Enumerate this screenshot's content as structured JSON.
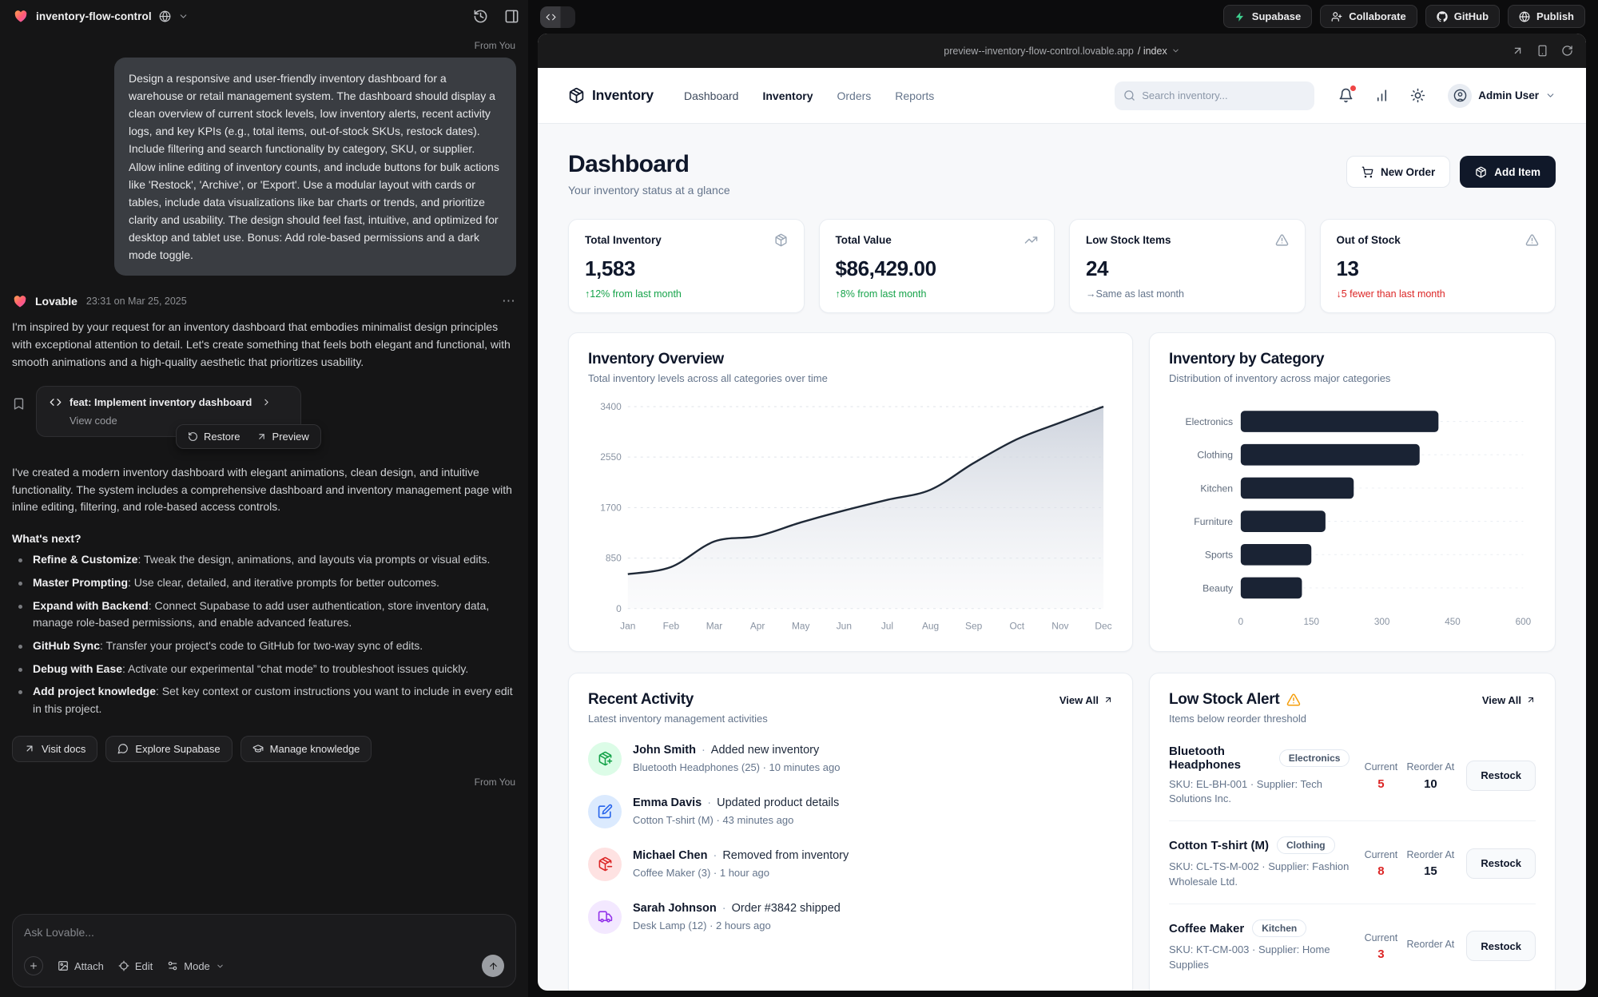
{
  "chrome": {
    "project_name": "inventory-flow-control",
    "url": "preview--inventory-flow-control.lovable.app",
    "url_path": "/ index",
    "topbar_buttons": [
      {
        "label": "Supabase",
        "icon": "supabase"
      },
      {
        "label": "Collaborate",
        "icon": "user-plus"
      },
      {
        "label": "GitHub",
        "icon": "github"
      },
      {
        "label": "Publish",
        "icon": "globe"
      }
    ]
  },
  "chat": {
    "from_you": "From You",
    "user_message": "Design a responsive and user-friendly inventory dashboard for a warehouse or retail management system. The dashboard should display a clean overview of current stock levels, low inventory alerts, recent activity logs, and key KPIs (e.g., total items, out-of-stock SKUs, restock dates). Include filtering and search functionality by category, SKU, or supplier. Allow inline editing of inventory counts, and include buttons for bulk actions like 'Restock', 'Archive', or 'Export'. Use a modular layout with cards or tables, include data visualizations like bar charts or trends, and prioritize clarity and usability. The design should feel fast, intuitive, and optimized for desktop and tablet use. Bonus: Add role-based permissions and a dark mode toggle.",
    "assistant_name": "Lovable",
    "assistant_time": "23:31 on Mar 25, 2025",
    "assistant_intro": "I'm inspired by your request for an inventory dashboard that embodies minimalist design principles with exceptional attention to detail. Let's create something that feels both elegant and functional, with smooth animations and a high-quality aesthetic that prioritizes usability.",
    "commit_title": "feat: Implement inventory dashboard",
    "view_code": "View code",
    "restore": "Restore",
    "preview": "Preview",
    "assistant_summary": "I've created a modern inventory dashboard with elegant animations, clean design, and intuitive functionality. The system includes a comprehensive dashboard and inventory management page with inline editing, filtering, and role-based access controls.",
    "whats_next": "What's next?",
    "bullets": [
      {
        "lead": "Refine & Customize",
        "text": ": Tweak the design, animations, and layouts via prompts or visual edits."
      },
      {
        "lead": "Master Prompting",
        "text": ": Use clear, detailed, and iterative prompts for better outcomes."
      },
      {
        "lead": "Expand with Backend",
        "text": ": Connect Supabase to add user authentication, store inventory data, manage role-based permissions, and enable advanced features."
      },
      {
        "lead": "GitHub Sync",
        "text": ": Transfer your project's code to GitHub for two-way sync of edits."
      },
      {
        "lead": "Debug with Ease",
        "text": ": Activate our experimental “chat mode” to troubleshoot issues quickly."
      },
      {
        "lead": "Add project knowledge",
        "text": ": Set key context or custom instructions you want to include in every edit in this project."
      }
    ],
    "footer_buttons": [
      {
        "label": "Visit docs",
        "icon": "arrow-up-right"
      },
      {
        "label": "Explore Supabase",
        "icon": "message-circle"
      },
      {
        "label": "Manage knowledge",
        "icon": "graduation-cap"
      }
    ],
    "composer": {
      "placeholder": "Ask Lovable...",
      "attach": "Attach",
      "edit": "Edit",
      "mode": "Mode"
    }
  },
  "app": {
    "brand": "Inventory",
    "nav": [
      {
        "label": "Dashboard",
        "active": false,
        "shade": true
      },
      {
        "label": "Inventory",
        "active": true,
        "shade": false
      },
      {
        "label": "Orders",
        "active": false,
        "shade": false
      },
      {
        "label": "Reports",
        "active": false,
        "shade": false
      }
    ],
    "search_placeholder": "Search inventory...",
    "user_name": "Admin User",
    "page_title": "Dashboard",
    "page_subtitle": "Your inventory status at a glance",
    "new_order": "New Order",
    "add_item": "Add Item",
    "kpis": [
      {
        "label": "Total Inventory",
        "icon": "package",
        "value": "1,583",
        "delta": "↑12% from last month",
        "tone": "green"
      },
      {
        "label": "Total Value",
        "icon": "trending-up",
        "value": "$86,429.00",
        "delta": "↑8% from last month",
        "tone": "green"
      },
      {
        "label": "Low Stock Items",
        "icon": "alert-triangle",
        "value": "24",
        "delta": "→Same as last month",
        "tone": "muted"
      },
      {
        "label": "Out of Stock",
        "icon": "alert-triangle",
        "value": "13",
        "delta": "↓5 fewer than last month",
        "tone": "red"
      }
    ],
    "activity": {
      "title": "Recent Activity",
      "subtitle": "Latest inventory management activities",
      "view_all": "View All",
      "items": [
        {
          "icon": "package-plus",
          "tone": "green",
          "name": "John Smith",
          "action": "Added new inventory",
          "detail": "Bluetooth Headphones (25) · 10 minutes ago"
        },
        {
          "icon": "edit-square",
          "tone": "blue",
          "name": "Emma Davis",
          "action": "Updated product details",
          "detail": "Cotton T-shirt (M) · 43 minutes ago"
        },
        {
          "icon": "package-minus",
          "tone": "red",
          "name": "Michael Chen",
          "action": "Removed from inventory",
          "detail": "Coffee Maker (3) · 1 hour ago"
        },
        {
          "icon": "truck",
          "tone": "purple",
          "name": "Sarah Johnson",
          "action": "Order #3842 shipped",
          "detail": "Desk Lamp (12) · 2 hours ago"
        }
      ]
    },
    "low_stock": {
      "title": "Low Stock Alert",
      "subtitle": "Items below reorder threshold",
      "view_all": "View All",
      "current_label": "Current",
      "reorder_label": "Reorder At",
      "restock_label": "Restock",
      "items": [
        {
          "name": "Bluetooth Headphones",
          "category": "Electronics",
          "sku": "SKU: EL-BH-001 · Supplier: Tech Solutions Inc.",
          "current": "5",
          "reorder": "10"
        },
        {
          "name": "Cotton T-shirt (M)",
          "category": "Clothing",
          "sku": "SKU: CL-TS-M-002 · Supplier: Fashion Wholesale Ltd.",
          "current": "8",
          "reorder": "15"
        },
        {
          "name": "Coffee Maker",
          "category": "Kitchen",
          "sku": "SKU: KT-CM-003 · Supplier: Home Supplies",
          "current": "3",
          "reorder": ""
        }
      ]
    }
  },
  "chart_data": [
    {
      "type": "area",
      "title": "Inventory Overview",
      "subtitle": "Total inventory levels across all categories over time",
      "x": [
        "Jan",
        "Feb",
        "Mar",
        "Apr",
        "May",
        "Jun",
        "Jul",
        "Aug",
        "Sep",
        "Oct",
        "Nov",
        "Dec"
      ],
      "values": [
        580,
        700,
        1130,
        1220,
        1450,
        1650,
        1830,
        2000,
        2450,
        2850,
        3130,
        3400
      ],
      "yticks": [
        0,
        850,
        1700,
        2550,
        3400
      ],
      "ylim": [
        0,
        3400
      ],
      "grid": "horizontal-dotted",
      "line_color": "#1f2937",
      "fill": "gray-gradient"
    },
    {
      "type": "bar",
      "title": "Inventory by Category",
      "subtitle": "Distribution of inventory across major categories",
      "orientation": "horizontal",
      "categories": [
        "Electronics",
        "Clothing",
        "Kitchen",
        "Furniture",
        "Sports",
        "Beauty"
      ],
      "values": [
        420,
        380,
        240,
        180,
        150,
        130
      ],
      "xticks": [
        0,
        150,
        300,
        450,
        600
      ],
      "xlim": [
        0,
        600
      ],
      "bar_color": "#1a2334"
    }
  ]
}
